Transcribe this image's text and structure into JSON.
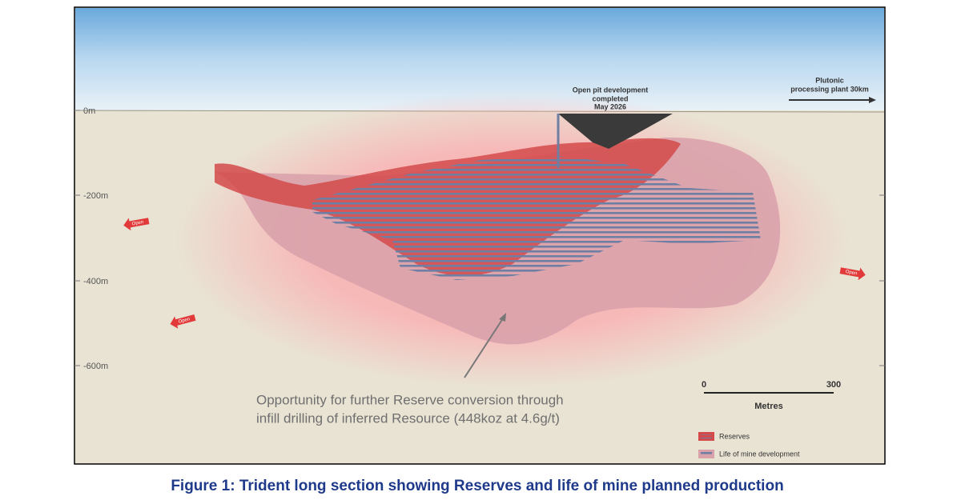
{
  "depth_axis": {
    "labels": [
      "0m",
      "-200m",
      "-400m",
      "-600m"
    ]
  },
  "open_markers": [
    "Open",
    "Open",
    "Open"
  ],
  "annotations": {
    "pit": [
      "Open pit development",
      "completed",
      "May 2026"
    ],
    "plant": [
      "Plutonic",
      "processing plant 30km"
    ],
    "opportunity": [
      "Opportunity for further Reserve conversion through",
      "infill drilling of inferred Resource (448koz at 4.6g/t)"
    ]
  },
  "scale_bar": {
    "start": "0",
    "end": "300",
    "unit": "Metres"
  },
  "legend": [
    "Reserves",
    "Life of mine development"
  ],
  "caption": "Figure 1: Trident long section showing Reserves and life of mine planned production"
}
